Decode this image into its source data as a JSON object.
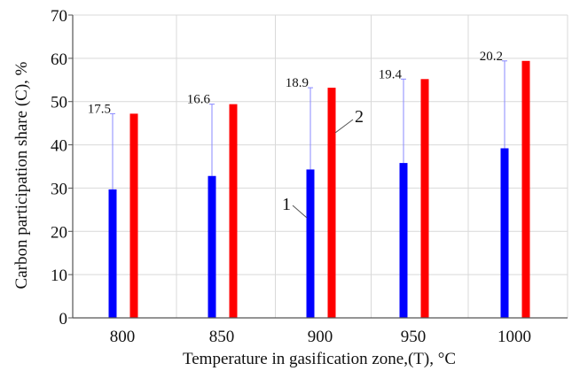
{
  "chart_data": {
    "type": "bar",
    "xlabel": "Temperature in gasification zone,(T), °C",
    "ylabel": "Carbon participation share (C), %",
    "ylim": [
      0,
      70
    ],
    "yticks": [
      "0",
      "10",
      "20",
      "30",
      "40",
      "50",
      "60",
      "70"
    ],
    "categories": [
      "800",
      "850",
      "900",
      "950",
      "1000"
    ],
    "series": [
      {
        "name": "1",
        "color": "#0000ff",
        "values": [
          29.7,
          32.8,
          34.3,
          35.8,
          39.2
        ]
      },
      {
        "name": "2",
        "color": "#ff0000",
        "values": [
          47.2,
          49.4,
          53.2,
          55.2,
          59.4
        ]
      }
    ],
    "difference_labels": [
      "17.5",
      "16.6",
      "18.9",
      "19.4",
      "20.2"
    ],
    "grid": true,
    "gridColor": "#d9d9d9",
    "axisColor": "#555555",
    "connectorColor": "#8888ff"
  }
}
